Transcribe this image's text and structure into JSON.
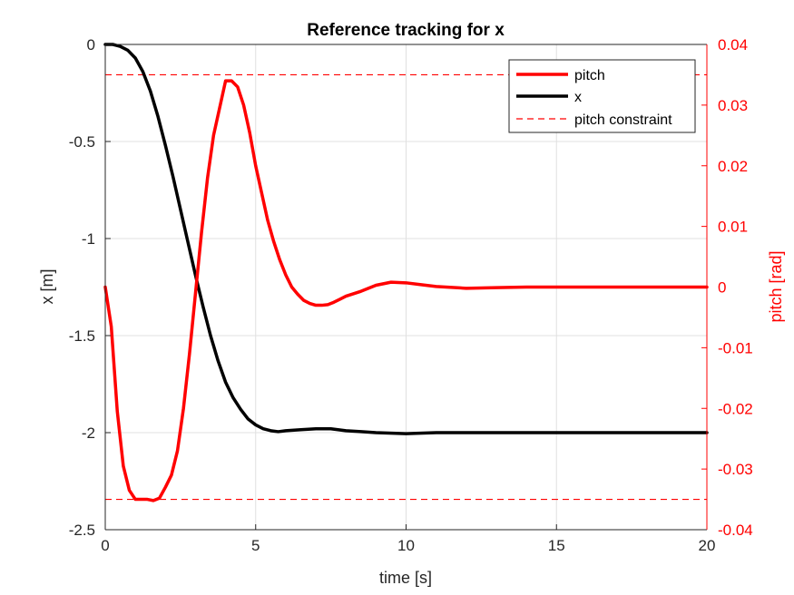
{
  "chart_data": {
    "type": "line",
    "title": "Reference tracking for x",
    "xlabel": "time [s]",
    "ylabel_left": "x [m]",
    "ylabel_right": "pitch [rad]",
    "xlim": [
      0,
      20
    ],
    "ylim_left": [
      -2.5,
      0
    ],
    "ylim_right": [
      -0.04,
      0.04
    ],
    "grid": true,
    "legend_position": "top-right",
    "x_ticks": [
      0,
      5,
      10,
      15,
      20
    ],
    "x_tick_labels": [
      "0",
      "5",
      "10",
      "15",
      "20"
    ],
    "y_left_ticks": [
      0,
      -0.5,
      -1,
      -1.5,
      -2,
      -2.5
    ],
    "y_left_tick_labels": [
      "0",
      "-0.5",
      "-1",
      "-1.5",
      "-2",
      "-2.5"
    ],
    "y_right_ticks": [
      0.04,
      0.03,
      0.02,
      0.01,
      0,
      -0.01,
      -0.02,
      -0.03,
      -0.04
    ],
    "y_right_tick_labels": [
      "0.04",
      "0.03",
      "0.02",
      "0.01",
      "0",
      "-0.01",
      "-0.02",
      "-0.03",
      "-0.04"
    ],
    "colors": {
      "pitch": "#ff0000",
      "x": "#000000",
      "constraint": "#ff0000",
      "grid": "#e0e0e0",
      "axis_left": "#262626",
      "axis_right": "#ff0000"
    },
    "series": [
      {
        "name": "pitch",
        "axis": "right",
        "style": "solid",
        "x": [
          0,
          0.2,
          0.4,
          0.6,
          0.8,
          1.0,
          1.2,
          1.4,
          1.6,
          1.8,
          2.0,
          2.2,
          2.4,
          2.6,
          2.8,
          3.0,
          3.2,
          3.4,
          3.6,
          3.8,
          4.0,
          4.2,
          4.4,
          4.6,
          4.8,
          5.0,
          5.2,
          5.4,
          5.6,
          5.8,
          6.0,
          6.2,
          6.4,
          6.6,
          6.8,
          7.0,
          7.2,
          7.4,
          7.6,
          7.8,
          8.0,
          8.5,
          9.0,
          9.5,
          10,
          10.5,
          11,
          12,
          13,
          14,
          15,
          16,
          17,
          18,
          19,
          20
        ],
        "y": [
          0,
          -0.0065,
          -0.0205,
          -0.0295,
          -0.0335,
          -0.035,
          -0.035,
          -0.035,
          -0.0352,
          -0.0348,
          -0.033,
          -0.031,
          -0.027,
          -0.02,
          -0.011,
          -0.001,
          0.009,
          0.018,
          0.025,
          0.0295,
          0.034,
          0.034,
          0.033,
          0.03,
          0.0255,
          0.02,
          0.0155,
          0.011,
          0.0075,
          0.0045,
          0.002,
          0.0,
          -0.0012,
          -0.0022,
          -0.0027,
          -0.003,
          -0.003,
          -0.0029,
          -0.0025,
          -0.002,
          -0.0015,
          -0.0007,
          0.0003,
          0.0008,
          0.0007,
          0.0004,
          0.0001,
          -0.0002,
          -0.0001,
          0.0,
          0.0,
          0.0,
          0.0,
          0.0,
          0.0,
          0.0
        ]
      },
      {
        "name": "x",
        "axis": "left",
        "style": "solid",
        "x": [
          0,
          0.25,
          0.5,
          0.75,
          1.0,
          1.25,
          1.5,
          1.75,
          2.0,
          2.25,
          2.5,
          2.75,
          3.0,
          3.25,
          3.5,
          3.75,
          4.0,
          4.25,
          4.5,
          4.75,
          5.0,
          5.25,
          5.5,
          5.75,
          6.0,
          6.5,
          7.0,
          7.5,
          8.0,
          8.5,
          9.0,
          10,
          11,
          12,
          13,
          14,
          15,
          16,
          17,
          18,
          19,
          20
        ],
        "y": [
          0,
          0,
          -0.01,
          -0.03,
          -0.07,
          -0.14,
          -0.24,
          -0.37,
          -0.52,
          -0.68,
          -0.85,
          -1.02,
          -1.19,
          -1.35,
          -1.5,
          -1.63,
          -1.74,
          -1.82,
          -1.88,
          -1.93,
          -1.96,
          -1.98,
          -1.99,
          -1.995,
          -1.99,
          -1.985,
          -1.98,
          -1.98,
          -1.99,
          -1.995,
          -2.0,
          -2.005,
          -2.0,
          -2.0,
          -2.0,
          -2.0,
          -2.0,
          -2.0,
          -2.0,
          -2.0,
          -2.0,
          -2.0
        ]
      },
      {
        "name": "pitch constraint",
        "axis": "right",
        "style": "dashed",
        "x": [
          0,
          20
        ],
        "y": [
          0.035,
          0.035
        ]
      },
      {
        "name": "pitch constraint",
        "axis": "right",
        "style": "dashed",
        "x": [
          0,
          20
        ],
        "y": [
          -0.035,
          -0.035
        ]
      }
    ],
    "legend": [
      "pitch",
      "x",
      "pitch constraint"
    ]
  }
}
